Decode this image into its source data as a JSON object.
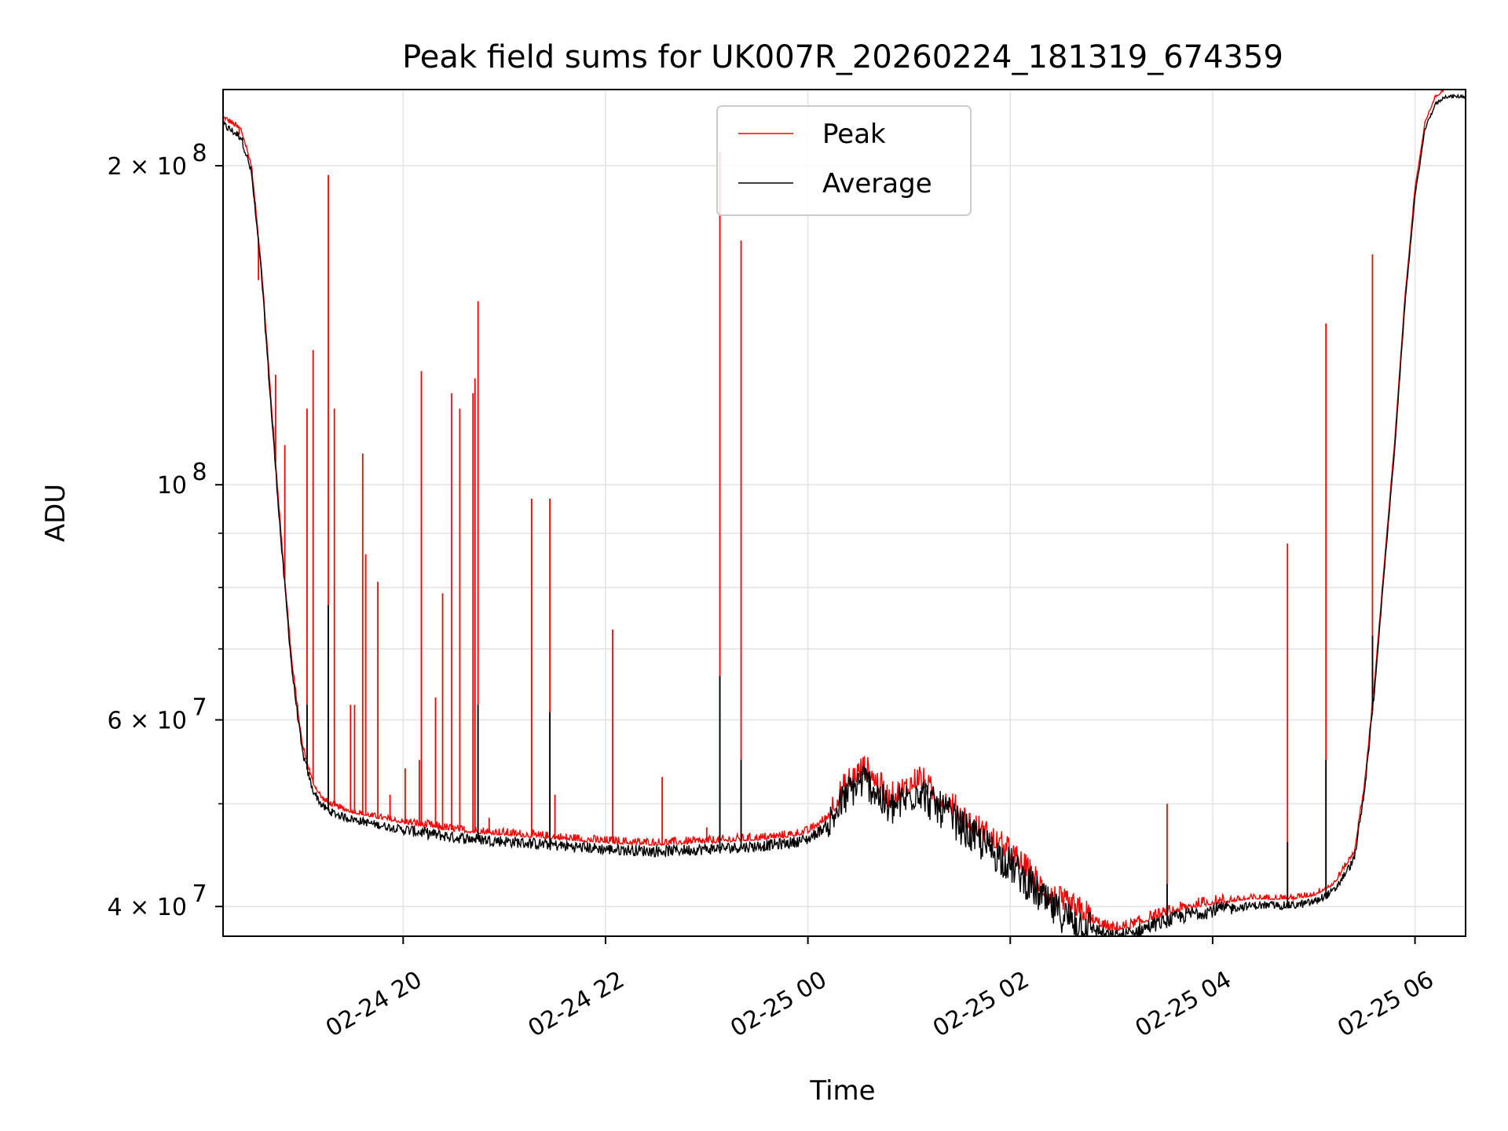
{
  "chart_data": {
    "type": "line",
    "title": "Peak field sums for UK007R_20260224_181319_674359",
    "xlabel": "Time",
    "ylabel": "ADU",
    "y_scale": "log",
    "ylim": [
      37500000,
      236000000
    ],
    "xlim_hours": [
      -1.78,
      10.5
    ],
    "grid": true,
    "legend_position": "upper-center",
    "x_ticks": [
      {
        "hour": 0,
        "label": "02-24 20"
      },
      {
        "hour": 2,
        "label": "02-24 22"
      },
      {
        "hour": 4,
        "label": "02-25 00"
      },
      {
        "hour": 6,
        "label": "02-25 02"
      },
      {
        "hour": 8,
        "label": "02-25 04"
      },
      {
        "hour": 10,
        "label": "02-25 06"
      }
    ],
    "y_ticks": [
      {
        "value": 40000000,
        "label_base": "4 × 10",
        "label_exp": "7"
      },
      {
        "value": 60000000,
        "label_base": "6 × 10",
        "label_exp": "7"
      },
      {
        "value": 100000000,
        "label_base": "10",
        "label_exp": "8"
      },
      {
        "value": 200000000,
        "label_base": "2 × 10",
        "label_exp": "8"
      }
    ],
    "y_minor_ticks": [
      50000000,
      70000000,
      80000000,
      90000000
    ],
    "colors": {
      "peak": "#ff0000",
      "average": "#000000"
    },
    "series": [
      {
        "name": "Peak",
        "color": "#ff0000",
        "baseline_x_hours": [
          -1.78,
          -1.6,
          -1.5,
          -1.4,
          -1.3,
          -1.2,
          -1.1,
          -1.0,
          -0.9,
          -0.8,
          -0.7,
          -0.6,
          -0.5,
          -0.3,
          0.0,
          0.5,
          1.0,
          1.5,
          2.0,
          2.5,
          3.0,
          3.5,
          3.8,
          4.0,
          4.2,
          4.4,
          4.55,
          4.65,
          4.8,
          5.0,
          5.1,
          5.2,
          5.4,
          5.6,
          5.8,
          6.0,
          6.2,
          6.4,
          6.6,
          6.8,
          7.0,
          7.2,
          7.4,
          7.6,
          7.8,
          8.0,
          8.2,
          8.4,
          8.6,
          8.8,
          9.0,
          9.2,
          9.4,
          9.5,
          9.6,
          9.7,
          9.8,
          9.9,
          10.0,
          10.1,
          10.2,
          10.3,
          10.5
        ],
        "baseline_values": [
          222000000,
          216000000,
          200000000,
          160000000,
          118000000,
          88000000,
          68000000,
          57000000,
          52500000,
          50500000,
          49800000,
          49400000,
          49100000,
          48600000,
          48000000,
          47200000,
          46800000,
          46400000,
          46000000,
          45800000,
          46000000,
          46300000,
          46600000,
          47000000,
          48500000,
          52000000,
          53500000,
          52500000,
          50000000,
          51500000,
          52500000,
          51000000,
          49500000,
          47500000,
          46000000,
          44500000,
          42500000,
          40500000,
          39500000,
          38800000,
          38000000,
          38300000,
          39000000,
          39500000,
          40000000,
          40300000,
          40500000,
          40700000,
          40700000,
          40700000,
          41000000,
          42000000,
          45000000,
          52000000,
          65000000,
          85000000,
          110000000,
          150000000,
          190000000,
          220000000,
          232000000,
          236000000,
          236000000
        ],
        "spikes": [
          {
            "hour": -1.62,
            "value": 214000000
          },
          {
            "hour": -1.43,
            "value": 156000000
          },
          {
            "hour": -1.26,
            "value": 127000000
          },
          {
            "hour": -1.17,
            "value": 109000000
          },
          {
            "hour": -0.95,
            "value": 118000000
          },
          {
            "hour": -0.89,
            "value": 134000000
          },
          {
            "hour": -0.74,
            "value": 196000000
          },
          {
            "hour": -0.68,
            "value": 118000000
          },
          {
            "hour": -0.52,
            "value": 62000000
          },
          {
            "hour": -0.48,
            "value": 62000000
          },
          {
            "hour": -0.4,
            "value": 107000000
          },
          {
            "hour": -0.37,
            "value": 86000000
          },
          {
            "hour": -0.25,
            "value": 81000000
          },
          {
            "hour": -0.13,
            "value": 51000000
          },
          {
            "hour": 0.02,
            "value": 54000000
          },
          {
            "hour": 0.16,
            "value": 55000000
          },
          {
            "hour": 0.18,
            "value": 128000000
          },
          {
            "hour": 0.32,
            "value": 63000000
          },
          {
            "hour": 0.39,
            "value": 79000000
          },
          {
            "hour": 0.48,
            "value": 122000000
          },
          {
            "hour": 0.56,
            "value": 118000000
          },
          {
            "hour": 0.69,
            "value": 122000000
          },
          {
            "hour": 0.71,
            "value": 126000000
          },
          {
            "hour": 0.74,
            "value": 149000000
          },
          {
            "hour": 0.85,
            "value": 48500000
          },
          {
            "hour": 1.27,
            "value": 97000000
          },
          {
            "hour": 1.45,
            "value": 97000000
          },
          {
            "hour": 1.5,
            "value": 51000000
          },
          {
            "hour": 2.07,
            "value": 73000000
          },
          {
            "hour": 2.56,
            "value": 53000000
          },
          {
            "hour": 3.0,
            "value": 47500000
          },
          {
            "hour": 3.13,
            "value": 206000000
          },
          {
            "hour": 3.34,
            "value": 170000000
          },
          {
            "hour": 7.55,
            "value": 50000000
          },
          {
            "hour": 8.74,
            "value": 88000000
          },
          {
            "hour": 9.12,
            "value": 142000000
          },
          {
            "hour": 9.58,
            "value": 165000000
          },
          {
            "hour": 9.78,
            "value": 103000000
          }
        ]
      },
      {
        "name": "Average",
        "color": "#000000",
        "offset_ratio": 0.985,
        "spikes": [
          {
            "hour": -0.95,
            "value": 62000000
          },
          {
            "hour": -0.74,
            "value": 77000000
          },
          {
            "hour": 0.74,
            "value": 62000000
          },
          {
            "hour": 1.45,
            "value": 61000000
          },
          {
            "hour": 3.13,
            "value": 66000000
          },
          {
            "hour": 3.34,
            "value": 55000000
          },
          {
            "hour": 7.55,
            "value": 42000000
          },
          {
            "hour": 8.74,
            "value": 46000000
          },
          {
            "hour": 9.12,
            "value": 55000000
          },
          {
            "hour": 9.58,
            "value": 72000000
          }
        ]
      }
    ]
  }
}
